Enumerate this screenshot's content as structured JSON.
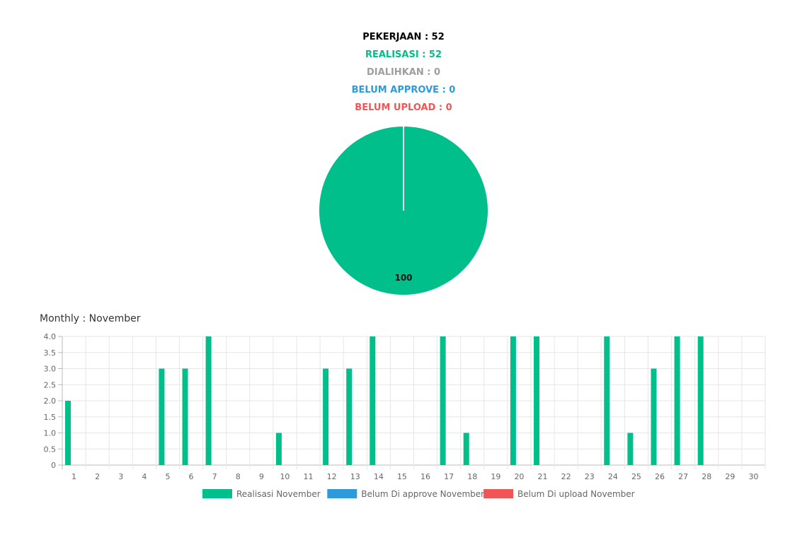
{
  "summary": {
    "pekerjaan": "PEKERJAAN : 52",
    "realisasi": "REALISASI : 52",
    "dialihkan": "DIALIHKAN : 0",
    "belum_approve": "BELUM APPROVE : 0",
    "belum_upload": "BELUM UPLOAD : 0"
  },
  "colors": {
    "pekerjaan": "#000000",
    "realisasi": "#00BF8A",
    "dialihkan": "#9E9E9E",
    "belum_approve": "#2D9BDB",
    "belum_upload": "#F25555"
  },
  "monthly_title": "Monthly : November",
  "chart_data": [
    {
      "type": "pie",
      "slices": [
        {
          "value": 100,
          "color": "#00BF8A",
          "label": "100"
        }
      ]
    },
    {
      "type": "bar",
      "categories": [
        "1",
        "2",
        "3",
        "4",
        "5",
        "6",
        "7",
        "8",
        "9",
        "10",
        "11",
        "12",
        "13",
        "14",
        "15",
        "16",
        "17",
        "18",
        "19",
        "20",
        "21",
        "22",
        "23",
        "24",
        "25",
        "26",
        "27",
        "28",
        "29",
        "30"
      ],
      "series": [
        {
          "name": "Realisasi November",
          "color": "#00BF8A",
          "values": [
            2,
            0,
            0,
            0,
            3,
            3,
            4,
            0,
            0,
            1,
            0,
            3,
            3,
            4,
            0,
            0,
            4,
            1,
            0,
            4,
            4,
            0,
            0,
            4,
            1,
            3,
            4,
            4,
            0,
            0
          ]
        },
        {
          "name": "Belum Di approve November",
          "color": "#2D9BDB",
          "values": [
            0,
            0,
            0,
            0,
            0,
            0,
            0,
            0,
            0,
            0,
            0,
            0,
            0,
            0,
            0,
            0,
            0,
            0,
            0,
            0,
            0,
            0,
            0,
            0,
            0,
            0,
            0,
            0,
            0,
            0
          ]
        },
        {
          "name": "Belum Di upload November",
          "color": "#F25555",
          "values": [
            0,
            0,
            0,
            0,
            0,
            0,
            0,
            0,
            0,
            0,
            0,
            0,
            0,
            0,
            0,
            0,
            0,
            0,
            0,
            0,
            0,
            0,
            0,
            0,
            0,
            0,
            0,
            0,
            0,
            0
          ]
        }
      ],
      "yticks": [
        "0",
        "0.5",
        "1.0",
        "1.5",
        "2.0",
        "2.5",
        "3.0",
        "3.5",
        "4.0"
      ],
      "ylim": [
        0,
        4
      ],
      "grid": true,
      "legend": "bottom"
    }
  ]
}
